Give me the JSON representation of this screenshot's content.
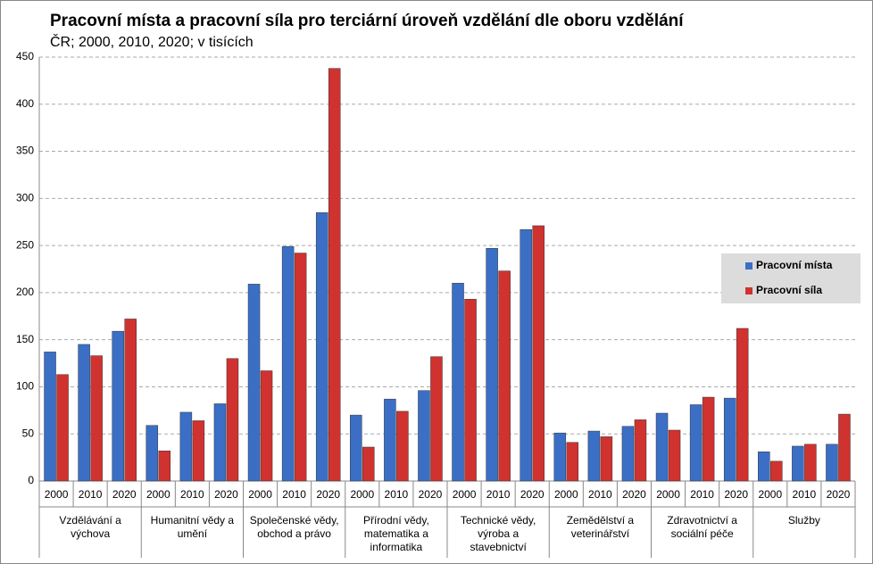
{
  "chart_data": {
    "type": "bar",
    "title": "Pracovní místa a pracovní síla pro terciární úroveň vzdělání dle oboru vzdělání",
    "subtitle": "ČR; 2000, 2010, 2020; v tisících",
    "categories": [
      "2000",
      "2010",
      "2020",
      "2000",
      "2010",
      "2020",
      "2000",
      "2010",
      "2020",
      "2000",
      "2010",
      "2020",
      "2000",
      "2010",
      "2020",
      "2000",
      "2010",
      "2020",
      "2000",
      "2010",
      "2020",
      "2000",
      "2010",
      "2020"
    ],
    "groups": [
      "Vzdělávání a výchova",
      "Humanitní vědy a umění",
      "Společenské vědy, obchod a právo",
      "Přírodní vědy, matematika a informatika",
      "Technické vědy, výroba a stavebnictví",
      "Zemědělství a veterinářství",
      "Zdravotnictví a sociální péče",
      "Služby"
    ],
    "series": [
      {
        "name": "Pracovní místa",
        "color": "#3b6fc6",
        "values": [
          137,
          145,
          159,
          59,
          73,
          82,
          209,
          249,
          285,
          70,
          87,
          96,
          210,
          247,
          267,
          51,
          53,
          58,
          72,
          81,
          88,
          31,
          37,
          39
        ]
      },
      {
        "name": "Pracovní síla",
        "color": "#d0322f",
        "values": [
          113,
          133,
          172,
          32,
          64,
          130,
          117,
          242,
          438,
          36,
          74,
          132,
          193,
          223,
          271,
          41,
          47,
          65,
          54,
          89,
          162,
          21,
          39,
          71
        ]
      }
    ],
    "ylim": [
      0,
      450
    ],
    "yticks": [
      0,
      50,
      100,
      150,
      200,
      250,
      300,
      350,
      400,
      450
    ],
    "grid": true,
    "legend": "right"
  }
}
